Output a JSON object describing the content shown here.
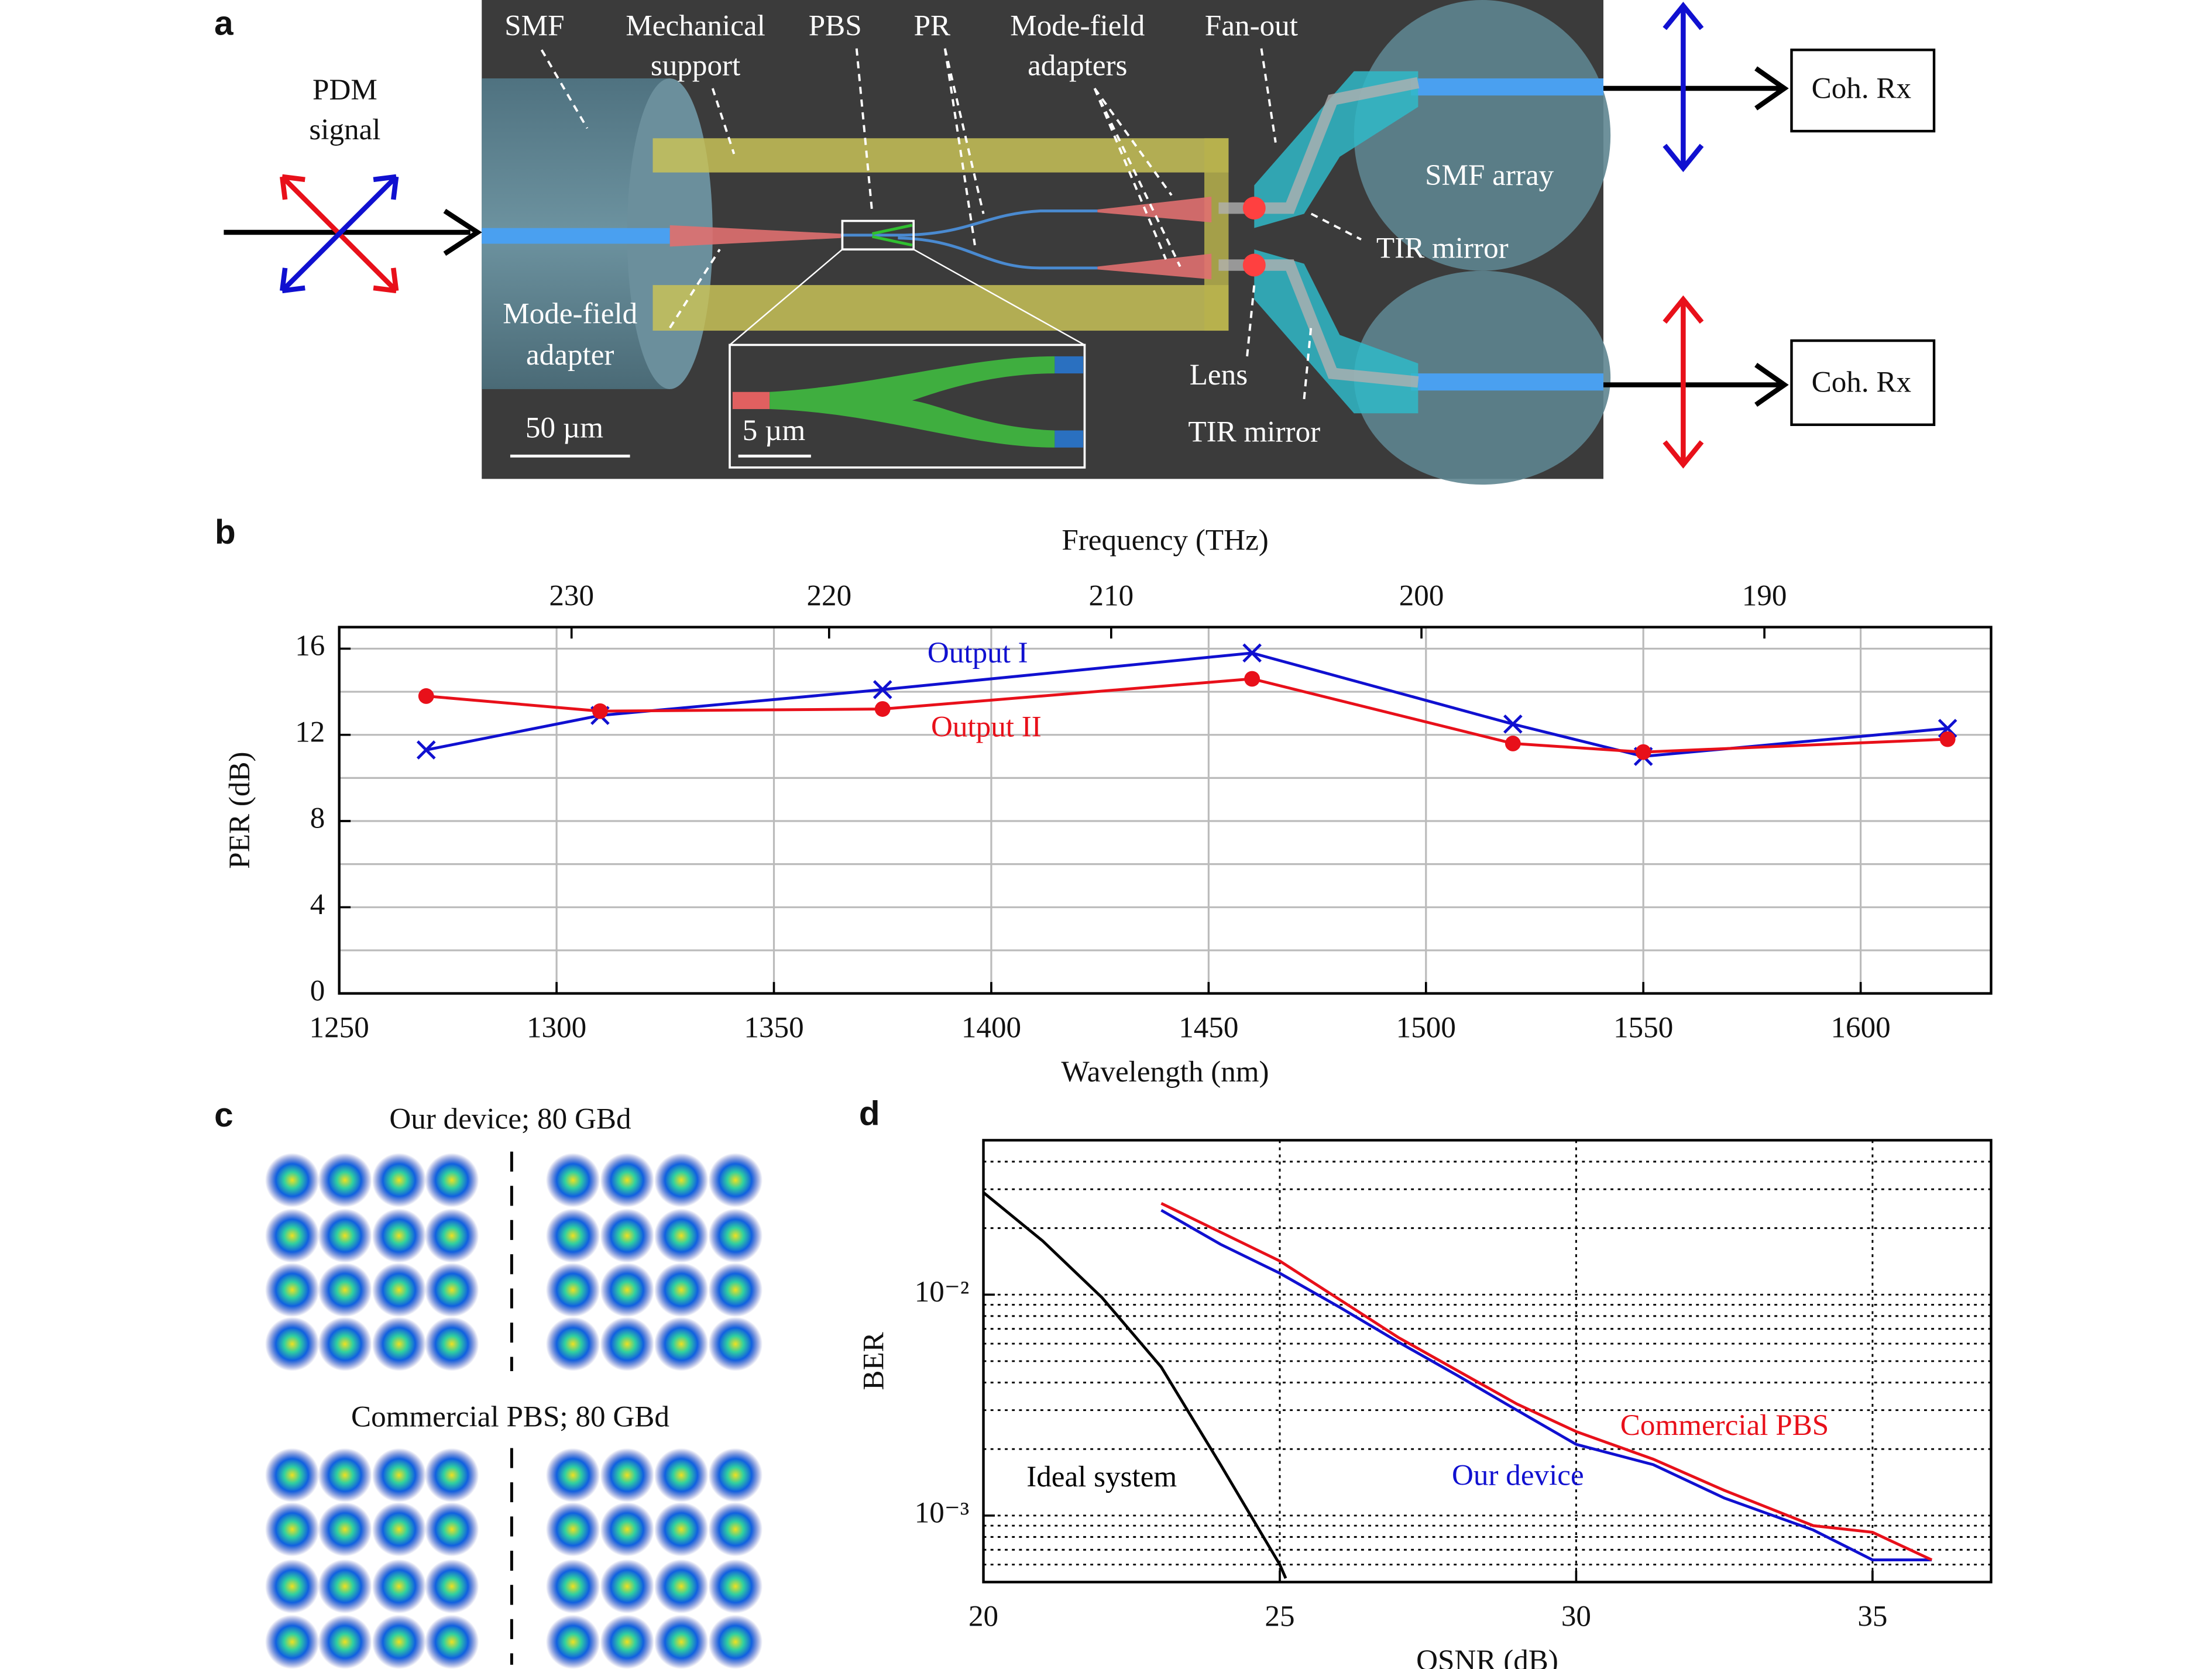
{
  "diagram": {
    "panel_label": "a",
    "labels": {
      "smf": "SMF",
      "support": [
        "Mechanical",
        "support"
      ],
      "pbs": "PBS",
      "pr": "PR",
      "mfa_right": [
        "Mode-field",
        "adapters"
      ],
      "fanout": "Fan-out",
      "input": [
        "PDM",
        "signal"
      ],
      "smf_array": "SMF array",
      "tir_top": "TIR mirror",
      "mfa_left": [
        "Mode-field",
        "adapter"
      ],
      "lens": "Lens",
      "tir_bottom": "TIR mirror",
      "scale_main": "50 µm",
      "scale_inset": "5 µm",
      "rx_top": "Coh. Rx",
      "rx_bottom": "Coh. Rx"
    }
  },
  "constellations": {
    "panel_label": "c",
    "titles": [
      "Our device; 80 GBd",
      "Commercial PBS; 80 GBd"
    ]
  },
  "chart_data": [
    {
      "type": "line",
      "panel_label": "b",
      "xlabel": "Wavelength (nm)",
      "ylabel": "PER (dB)",
      "x2label": "Frequency (THz)",
      "x": [
        1270,
        1310,
        1375,
        1460,
        1520,
        1550,
        1620
      ],
      "series": [
        {
          "name": "Output I",
          "color": "#1010d0",
          "marker": "x",
          "values": [
            11.3,
            12.9,
            14.1,
            15.8,
            12.5,
            11.0,
            12.3
          ]
        },
        {
          "name": "Output II",
          "color": "#e8101a",
          "marker": "o",
          "values": [
            13.8,
            13.1,
            13.2,
            14.6,
            11.6,
            11.2,
            11.8
          ]
        }
      ],
      "xlim": [
        1250,
        1630
      ],
      "xticks": [
        1250,
        1300,
        1350,
        1400,
        1450,
        1500,
        1550,
        1600
      ],
      "ylim": [
        0,
        17
      ],
      "yticks": [
        0,
        4,
        8,
        12,
        16
      ],
      "yminor_ticks": [
        2,
        6,
        10,
        14
      ],
      "x2ticks": [
        230,
        220,
        210,
        200,
        190
      ],
      "grid": true,
      "grid_style": "solid",
      "log_y": false
    },
    {
      "type": "line",
      "panel_label": "d",
      "xlabel": "OSNR (dB)",
      "ylabel": "BER",
      "series": [
        {
          "name": "Ideal system",
          "color": "#000000",
          "x": [
            20,
            21,
            22,
            23,
            24,
            25,
            25.1
          ],
          "values": [
            0.029,
            0.0175,
            0.0097,
            0.0047,
            0.0017,
            0.0006,
            0.00052
          ]
        },
        {
          "name": "Our device",
          "color": "#1010d0",
          "x": [
            23,
            24,
            25,
            26,
            27,
            28,
            29,
            30,
            31.3,
            32.5,
            34,
            35,
            36
          ],
          "values": [
            0.0241,
            0.0169,
            0.0125,
            0.0088,
            0.0061,
            0.0043,
            0.003,
            0.0021,
            0.0017,
            0.0012,
            0.00086,
            0.00063,
            0.00063
          ]
        },
        {
          "name": "Commercial PBS",
          "color": "#e8101a",
          "x": [
            23,
            25,
            27,
            29,
            30,
            31.3,
            32.5,
            34,
            35,
            36
          ],
          "values": [
            0.0259,
            0.0142,
            0.0064,
            0.0032,
            0.0024,
            0.0018,
            0.0013,
            0.0009,
            0.00084,
            0.00063
          ]
        }
      ],
      "xlim": [
        20,
        37
      ],
      "xticks": [
        20,
        25,
        30,
        35
      ],
      "ylim": [
        0.0005,
        0.05
      ],
      "yticks": [
        {
          "value": 0.001,
          "label": "10⁻³"
        },
        {
          "value": 0.01,
          "label": "10⁻²"
        }
      ],
      "yminor_ticks": [
        0.0006,
        0.0007,
        0.0008,
        0.0009,
        0.002,
        0.003,
        0.004,
        0.005,
        0.006,
        0.007,
        0.008,
        0.009,
        0.02,
        0.03,
        0.04
      ],
      "grid": true,
      "grid_style": "dotted",
      "log_y": true
    }
  ]
}
